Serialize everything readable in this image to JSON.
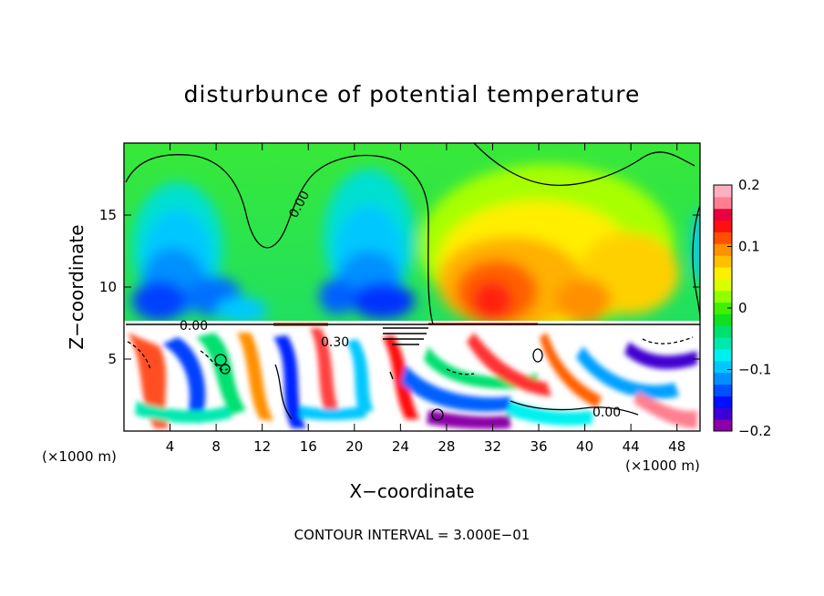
{
  "chart_data": {
    "type": "heatmap",
    "title": "disturbunce of potential temperature",
    "xlabel": "X−coordinate",
    "ylabel": "Z−coordinate",
    "x_unit_left": "(×1000 m)",
    "x_unit_right": "(×1000 m)",
    "x_ticks": [
      4,
      8,
      12,
      16,
      20,
      24,
      28,
      32,
      36,
      40,
      44,
      48
    ],
    "x_tick_labels": [
      "4",
      "8",
      "12",
      "16",
      "20",
      "24",
      "28",
      "32",
      "36",
      "40",
      "44",
      "48"
    ],
    "y_ticks": [
      5,
      10,
      15
    ],
    "y_tick_labels": [
      "5",
      "10",
      "15"
    ],
    "xlim": [
      0,
      50
    ],
    "ylim": [
      0,
      20
    ],
    "colorbar": {
      "range": [
        -0.2,
        0.2
      ],
      "tick_values": [
        0.2,
        0.1,
        0,
        -0.1,
        -0.2
      ],
      "tick_labels": [
        "0.2",
        "0.1",
        "0",
        "−0.1",
        "−0.2"
      ],
      "colors": [
        "#8b00a8",
        "#3d00d6",
        "#0010ff",
        "#0050ff",
        "#0090ff",
        "#00c8ff",
        "#00f0f0",
        "#00e8b0",
        "#00e070",
        "#10e020",
        "#40f000",
        "#90ff00",
        "#d8ff00",
        "#ffee00",
        "#ffc000",
        "#ff9000",
        "#ff5000",
        "#ff1010",
        "#e80040",
        "#ff7f8f",
        "#ffb0c0"
      ]
    },
    "contour_labels": [
      "0.00",
      "0.00",
      "0.30",
      "0.00"
    ],
    "note": "CONTOUR INTERVAL = 3.000E−01",
    "grid": false,
    "legend": "colorbar-right"
  }
}
